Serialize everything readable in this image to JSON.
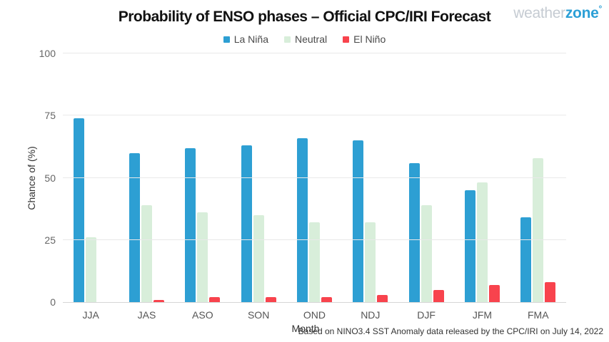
{
  "header": {
    "title": "Probability of ENSO phases – Official CPC/IRI Forecast",
    "logo": {
      "part1": "weather",
      "part2": "zone",
      "degree": "°"
    }
  },
  "legend": [
    {
      "key": "la-nina",
      "label": "La Niña",
      "color": "#2d9fd3"
    },
    {
      "key": "neutral",
      "label": "Neutral",
      "color": "#d8eeda"
    },
    {
      "key": "el-nino",
      "label": "El Niño",
      "color": "#f8434d"
    }
  ],
  "chart_data": {
    "type": "bar",
    "title": "Probability of ENSO phases – Official CPC/IRI Forecast",
    "categories": [
      "JJA",
      "JAS",
      "ASO",
      "SON",
      "OND",
      "NDJ",
      "DJF",
      "JFM",
      "FMA"
    ],
    "series": [
      {
        "key": "la-nina",
        "name": "La Niña",
        "color": "#2d9fd3",
        "values": [
          74,
          60,
          62,
          63,
          66,
          65,
          56,
          45,
          34
        ]
      },
      {
        "key": "neutral",
        "name": "Neutral",
        "color": "#d8eeda",
        "values": [
          26,
          39,
          36,
          35,
          32,
          32,
          39,
          48,
          58
        ]
      },
      {
        "key": "el-nino",
        "name": "El Niño",
        "color": "#f8434d",
        "values": [
          0,
          1,
          2,
          2,
          2,
          3,
          5,
          7,
          8
        ]
      }
    ],
    "xlabel": "Month",
    "ylabel": "Chance of (%)",
    "ylim": [
      0,
      100
    ],
    "yticks": [
      0,
      25,
      50,
      75,
      100
    ],
    "grid": true,
    "legend_position": "top"
  },
  "footer": {
    "note": "Based on NINO3.4 SST Anomaly data released by the CPC/IRI on July 14, 2022"
  }
}
